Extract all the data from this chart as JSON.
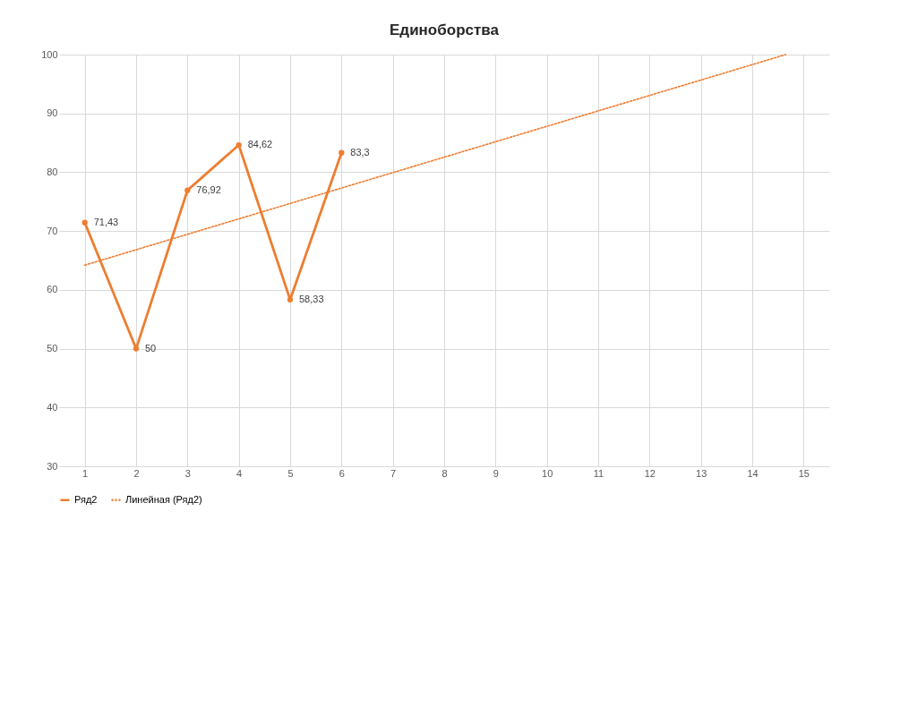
{
  "chart_data": {
    "type": "line",
    "title": "Единоборства",
    "x": [
      1,
      2,
      3,
      4,
      5,
      6
    ],
    "series": [
      {
        "name": "Ряд2",
        "color": "#ed7d31",
        "values": [
          71.43,
          50,
          76.92,
          84.62,
          58.33,
          83.3
        ],
        "value_labels": [
          "71,43",
          "50",
          "76,92",
          "84,62",
          "58,33",
          "83,3"
        ],
        "marker": "circle",
        "line_style": "solid"
      },
      {
        "name": "Линейная (Ряд2)",
        "type": "line",
        "color": "#ed7d31",
        "x": [
          1,
          14.65
        ],
        "values": [
          64.2,
          100
        ],
        "marker": "none",
        "line_style": "dotted"
      }
    ],
    "xlim": [
      0.5,
      15.5
    ],
    "xticks": [
      1,
      2,
      3,
      4,
      5,
      6,
      7,
      8,
      9,
      10,
      11,
      12,
      13,
      14,
      15
    ],
    "ylim": [
      30,
      100
    ],
    "yticks": [
      30,
      40,
      50,
      60,
      70,
      80,
      90,
      100
    ],
    "grid": true,
    "legend": "bottom"
  }
}
